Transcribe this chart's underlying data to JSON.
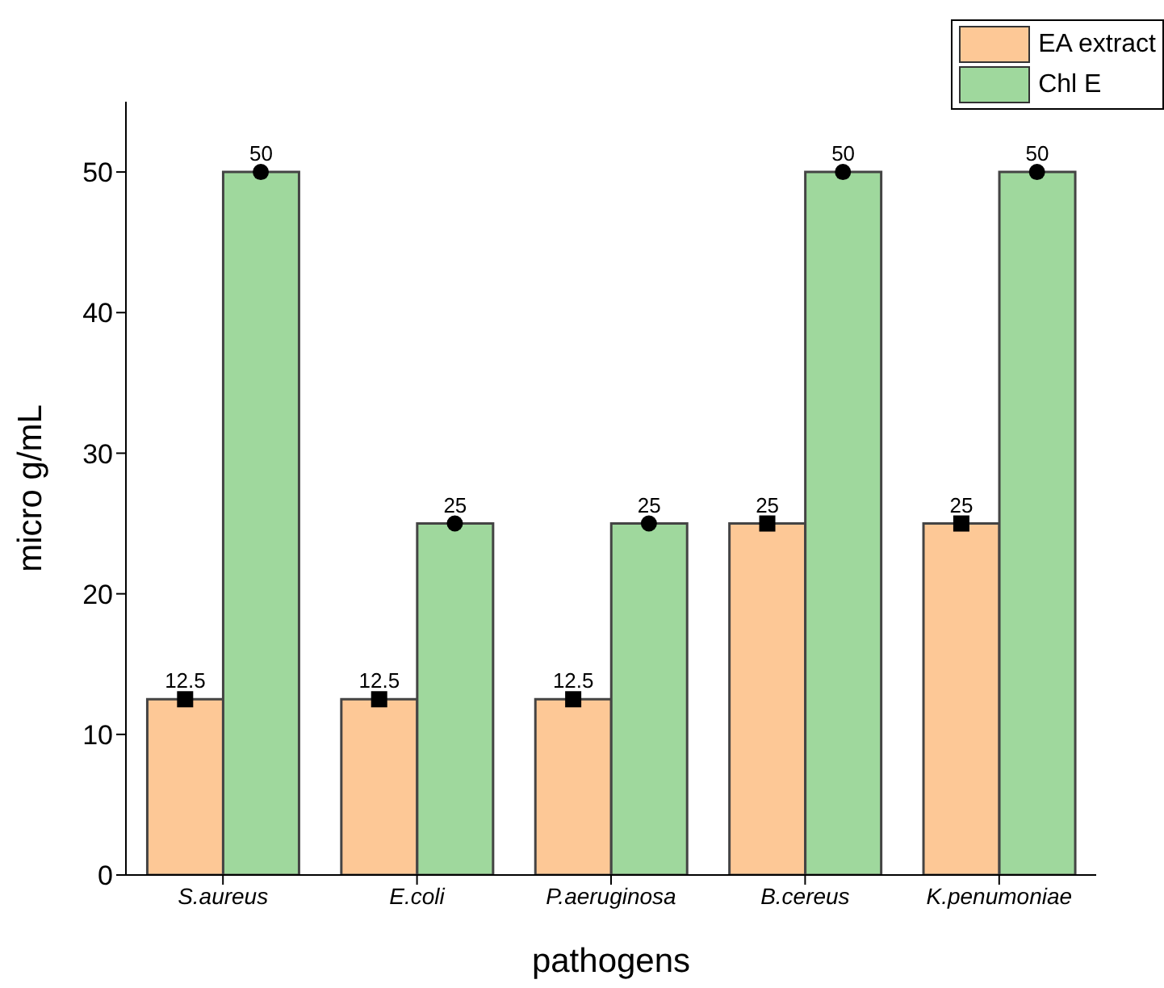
{
  "chart_data": {
    "type": "bar",
    "xlabel": "pathogens",
    "ylabel": "micro g/mL",
    "categories": [
      "S.aureus",
      "E.coli",
      "P.aeruginosa",
      "B.cereus",
      "K.penumoniae"
    ],
    "series": [
      {
        "name": "EA extract",
        "color": "#fdc896",
        "values": [
          12.5,
          12.5,
          12.5,
          25,
          25
        ],
        "value_labels": [
          "12.5",
          "12.5",
          "12.5",
          "25",
          "25"
        ]
      },
      {
        "name": "Chl E",
        "color": "#9fd89d",
        "values": [
          50,
          25,
          25,
          50,
          50
        ],
        "value_labels": [
          "50",
          "25",
          "25",
          "50",
          "50"
        ]
      },
      {
        "type": "scatter",
        "color": "#000000",
        "marker": "square",
        "x": [
          "S.aureus",
          "E.coli",
          "P.aeruginosa",
          "B.cereus",
          "K.penumoniae"
        ],
        "values": [
          12.5,
          12.5,
          12.5,
          25,
          25
        ]
      },
      {
        "type": "scatter",
        "color": "#000000",
        "marker": "circle",
        "x": [
          "S.aureus",
          "E.coli",
          "P.aeruginosa",
          "B.cereus",
          "K.penumoniae"
        ],
        "values": [
          50,
          25,
          25,
          50,
          50
        ]
      }
    ],
    "ylim": [
      0,
      55
    ],
    "yticks": [
      0,
      10,
      20,
      30,
      40,
      50
    ],
    "grid": false,
    "legend": "top right"
  }
}
